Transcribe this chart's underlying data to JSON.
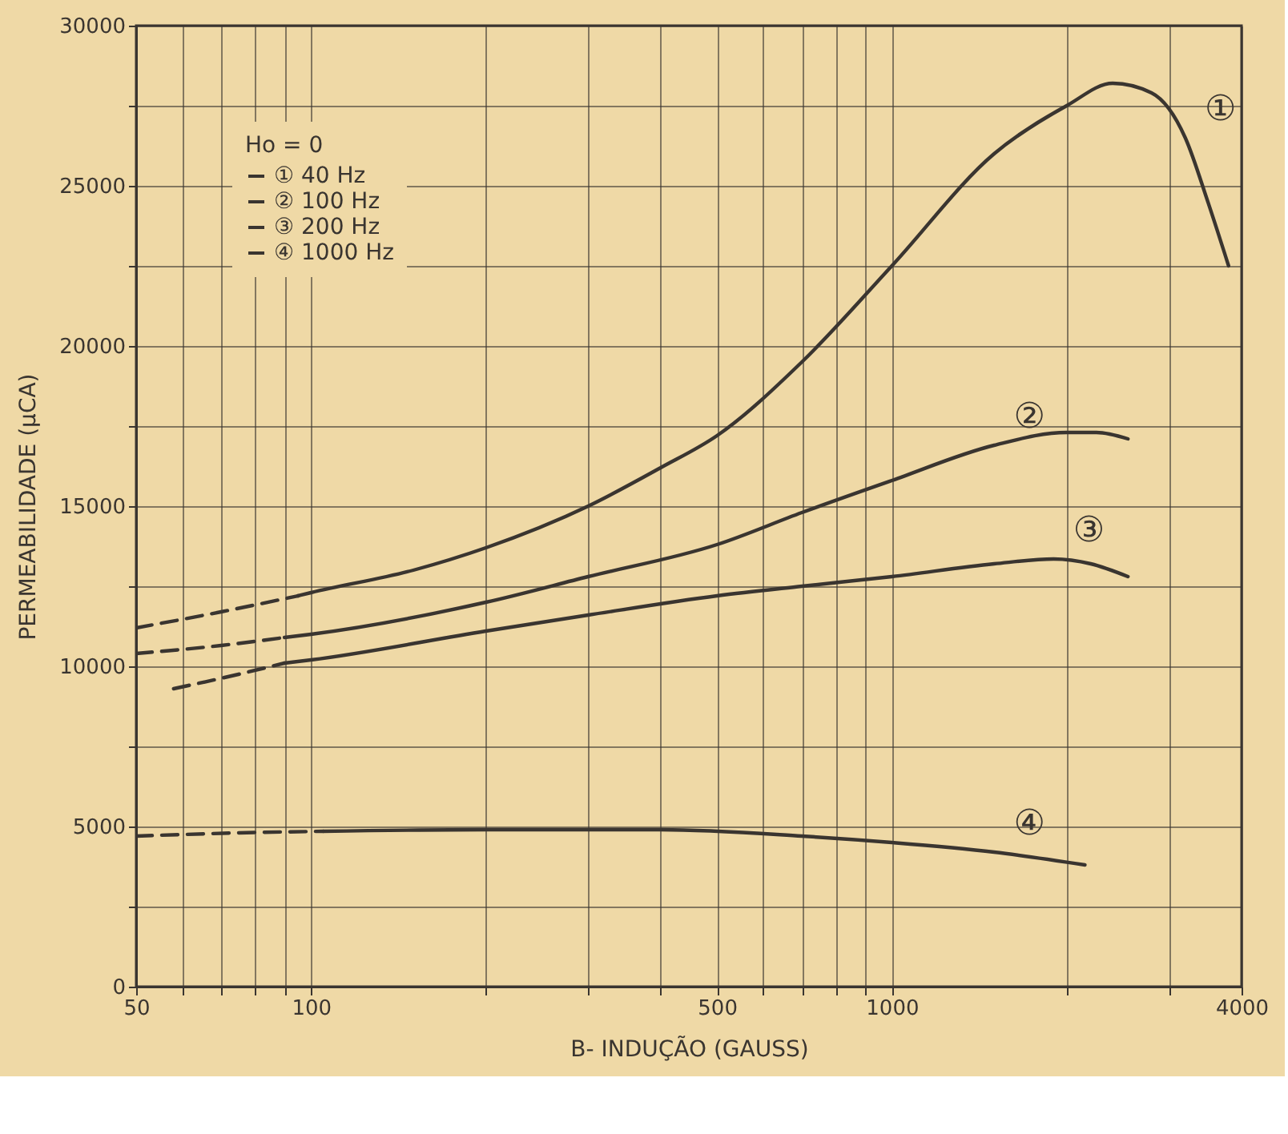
{
  "chart_data": {
    "type": "line",
    "xlabel": "B- INDUÇÃO (GAUSS)",
    "ylabel": "PERMEABILIDADE (μCA)",
    "legend_title": "Ho = 0",
    "legend": "top left",
    "log": "x",
    "grid": true,
    "marker": "none",
    "xlim": [
      50,
      4000
    ],
    "ylim": [
      0,
      30000
    ],
    "xticks": [
      50,
      {
        "value": 60,
        "label": null
      },
      {
        "value": 70,
        "label": null
      },
      {
        "value": 80,
        "label": null
      },
      {
        "value": 90,
        "label": null
      },
      100,
      {
        "value": 200,
        "label": null
      },
      {
        "value": 300,
        "label": null
      },
      {
        "value": 400,
        "label": null
      },
      500,
      {
        "value": 600,
        "label": null
      },
      {
        "value": 700,
        "label": null
      },
      {
        "value": 800,
        "label": null
      },
      {
        "value": 900,
        "label": null
      },
      1000,
      {
        "value": 2000,
        "label": null
      },
      {
        "value": 3000,
        "label": null
      },
      4000
    ],
    "yticks": [
      0,
      {
        "value": 2500,
        "label": null
      },
      5000,
      {
        "value": 7500,
        "label": null
      },
      10000,
      {
        "value": 12500,
        "label": null
      },
      15000,
      {
        "value": 17500,
        "label": null
      },
      20000,
      {
        "value": 22500,
        "label": null
      },
      25000,
      {
        "value": 27500,
        "label": null
      },
      30000
    ],
    "series": [
      {
        "name": "① 40 Hz",
        "color": "#3a3530",
        "line_style": "solid",
        "x": [
          95,
          100,
          150,
          200,
          300,
          400,
          500,
          700,
          1000,
          1500,
          2000,
          2400,
          2800,
          3200,
          3500,
          3800
        ],
        "values": [
          12200,
          12300,
          13000,
          13700,
          15000,
          16200,
          17200,
          19500,
          22500,
          26000,
          27500,
          28200,
          27900,
          26500,
          24500,
          22500
        ]
      },
      {
        "name": "② 100 Hz",
        "color": "#3a3530",
        "line_style": "solid",
        "x": [
          90,
          100,
          200,
          300,
          500,
          700,
          1000,
          1500,
          2000,
          2250,
          2550
        ],
        "values": [
          10900,
          11000,
          12000,
          12800,
          13800,
          14800,
          15800,
          16900,
          17300,
          17300,
          17100
        ]
      },
      {
        "name": "③ 200 Hz",
        "color": "#3a3530",
        "line_style": "solid",
        "x": [
          90,
          100,
          200,
          300,
          500,
          700,
          1000,
          1500,
          1900,
          2200,
          2550
        ],
        "values": [
          10100,
          10200,
          11100,
          11600,
          12200,
          12500,
          12800,
          13200,
          13350,
          13200,
          12800
        ]
      },
      {
        "name": "④ 1000 Hz",
        "color": "#3a3530",
        "line_style": "solid",
        "x": [
          105,
          200,
          400,
          700,
          1000,
          1500,
          2150
        ],
        "values": [
          4850,
          4900,
          4900,
          4700,
          4500,
          4200,
          3800
        ]
      },
      {
        "color": "#3a3530",
        "line_style": "dashed",
        "x": [
          50,
          70,
          95
        ],
        "values": [
          11200,
          11700,
          12200
        ]
      },
      {
        "color": "#3a3530",
        "line_style": "dashed",
        "x": [
          50,
          70,
          90
        ],
        "values": [
          10400,
          10650,
          10900
        ]
      },
      {
        "color": "#3a3530",
        "line_style": "dashed",
        "x": [
          58,
          75,
          90
        ],
        "values": [
          9300,
          9750,
          10100
        ]
      },
      {
        "color": "#3a3530",
        "line_style": "dashed",
        "x": [
          50,
          75,
          105
        ],
        "values": [
          4700,
          4800,
          4850
        ]
      }
    ],
    "annotations": [
      {
        "text": "①",
        "x": 3200,
        "y": 26500
      },
      {
        "text": "②",
        "x": 1500,
        "y": 16900
      },
      {
        "text": "③",
        "x": 1900,
        "y": 13350
      },
      {
        "text": "④",
        "x": 1500,
        "y": 4200
      }
    ]
  }
}
